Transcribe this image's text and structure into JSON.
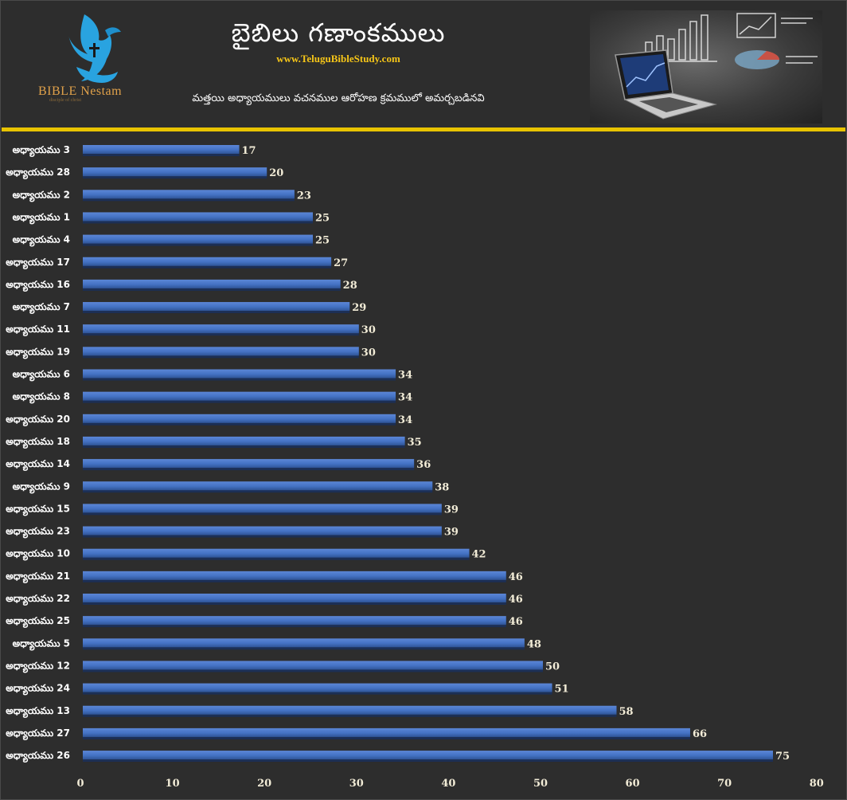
{
  "header": {
    "title": "బైబిలు గణాంకములు",
    "website": "www.TeluguBibleStudy.com",
    "subtitle": "మత్తయి అధ్యాయములు వచనముల ఆరోహణ క్రమములో అమర్చబడినవి",
    "logo_name": "BIBLE Nestam",
    "logo_tag": "disciple of christ",
    "accent_color": "#e8c300",
    "bar_color": "#4472c4"
  },
  "chart_data": {
    "type": "bar",
    "orientation": "horizontal",
    "title": "",
    "xlabel": "",
    "ylabel": "",
    "xlim": [
      0,
      80
    ],
    "ticks": [
      0,
      10,
      20,
      30,
      40,
      50,
      60,
      70,
      80
    ],
    "grid": false,
    "categories": [
      "అధ్యాయము 3",
      "అధ్యాయము 28",
      "అధ్యాయము 2",
      "అధ్యాయము 1",
      "అధ్యాయము 4",
      "అధ్యాయము 17",
      "అధ్యాయము 16",
      "అధ్యాయము 7",
      "అధ్యాయము 11",
      "అధ్యాయము 19",
      "అధ్యాయము 6",
      "అధ్యాయము 8",
      "అధ్యాయము 20",
      "అధ్యాయము 18",
      "అధ్యాయము 14",
      "అధ్యాయము 9",
      "అధ్యాయము 15",
      "అధ్యాయము 23",
      "అధ్యాయము 10",
      "అధ్యాయము 21",
      "అధ్యాయము 22",
      "అధ్యాయము 25",
      "అధ్యాయము 5",
      "అధ్యాయము 12",
      "అధ్యాయము 24",
      "అధ్యాయము 13",
      "అధ్యాయము 27",
      "అధ్యాయము 26"
    ],
    "values": [
      17,
      20,
      23,
      25,
      25,
      27,
      28,
      29,
      30,
      30,
      34,
      34,
      34,
      35,
      36,
      38,
      39,
      39,
      42,
      46,
      46,
      46,
      48,
      50,
      51,
      58,
      66,
      75
    ]
  }
}
